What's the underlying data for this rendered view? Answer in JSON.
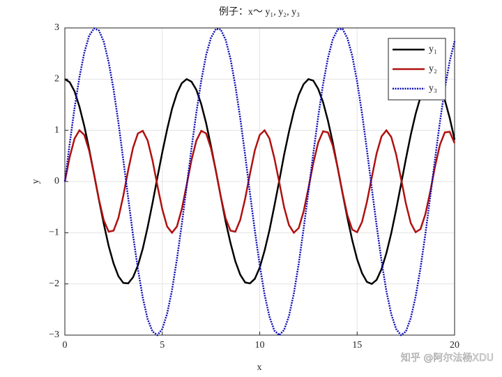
{
  "chart_data": {
    "type": "line",
    "title": "例子：x～ y₁, y₂, y₃",
    "xlabel": "x",
    "ylabel": "y",
    "watermark": "知乎 @阿尔法杨XDU",
    "x": [
      0,
      0.25,
      0.5,
      0.75,
      1,
      1.25,
      1.5,
      1.75,
      2,
      2.25,
      2.5,
      2.75,
      3,
      3.25,
      3.5,
      3.75,
      4,
      4.25,
      4.5,
      4.75,
      5,
      5.25,
      5.5,
      5.75,
      6,
      6.25,
      6.5,
      6.75,
      7,
      7.25,
      7.5,
      7.75,
      8,
      8.25,
      8.5,
      8.75,
      9,
      9.25,
      9.5,
      9.75,
      10,
      10.25,
      10.5,
      10.75,
      11,
      11.25,
      11.5,
      11.75,
      12,
      12.25,
      12.5,
      12.75,
      13,
      13.25,
      13.5,
      13.75,
      14,
      14.25,
      14.5,
      14.75,
      15,
      15.25,
      15.5,
      15.75,
      16,
      16.25,
      16.5,
      16.75,
      17,
      17.25,
      17.5,
      17.75,
      18,
      18.25,
      18.5,
      18.75,
      19,
      19.25,
      19.5,
      19.75,
      20
    ],
    "series": [
      {
        "name": "y₁",
        "color": "#000000",
        "dash": "solid",
        "values": [
          2,
          1.94,
          1.76,
          1.46,
          1.08,
          0.63,
          0.14,
          -0.36,
          -0.83,
          -1.26,
          -1.6,
          -1.85,
          -1.98,
          -1.99,
          -1.87,
          -1.64,
          -1.31,
          -0.89,
          -0.42,
          0.08,
          0.57,
          1.02,
          1.42,
          1.72,
          1.92,
          2,
          1.95,
          1.79,
          1.51,
          1.14,
          0.69,
          0.21,
          -0.29,
          -0.78,
          -1.2,
          -1.56,
          -1.82,
          -1.97,
          -1.99,
          -1.9,
          -1.68,
          -1.35,
          -0.95,
          -0.48,
          0.01,
          0.52,
          0.97,
          1.37,
          1.69,
          1.9,
          2,
          1.97,
          1.81,
          1.55,
          1.19,
          0.76,
          0.27,
          -0.23,
          -0.71,
          -1.15,
          -1.52,
          -1.79,
          -1.96,
          -2,
          -1.92,
          -1.71,
          -1.4,
          -1.01,
          -0.55,
          -0.06,
          0.44,
          0.91,
          1.32,
          1.65,
          1.88,
          1.99,
          1.98,
          1.84,
          1.59,
          1.24,
          0.82
        ]
      },
      {
        "name": "y₂",
        "color": "#b01010",
        "dash": "solid",
        "values": [
          0,
          0.48,
          0.84,
          1,
          0.91,
          0.6,
          0.14,
          -0.35,
          -0.76,
          -0.98,
          -0.96,
          -0.71,
          -0.28,
          0.22,
          0.66,
          0.94,
          0.99,
          0.8,
          0.41,
          -0.08,
          -0.54,
          -0.88,
          -1,
          -0.88,
          -0.54,
          -0.07,
          0.42,
          0.8,
          0.99,
          0.94,
          0.65,
          0.21,
          -0.29,
          -0.72,
          -0.96,
          -0.98,
          -0.75,
          -0.34,
          0.15,
          0.61,
          0.91,
          1,
          0.84,
          0.46,
          -0.01,
          -0.5,
          -0.85,
          -1,
          -0.91,
          -0.59,
          -0.13,
          0.36,
          0.76,
          0.98,
          0.96,
          0.7,
          0.27,
          -0.22,
          -0.66,
          -0.94,
          -0.99,
          -0.79,
          -0.4,
          0.08,
          0.55,
          0.88,
          1,
          0.87,
          0.53,
          0.06,
          -0.43,
          -0.81,
          -0.99,
          -0.93,
          -0.64,
          -0.2,
          0.3,
          0.72,
          0.96,
          0.97,
          0.75
        ]
      },
      {
        "name": "y₃",
        "color": "#0a0ab4",
        "dash": "dotted",
        "values": [
          0,
          0.74,
          1.44,
          2.04,
          2.52,
          2.85,
          2.99,
          2.95,
          2.73,
          2.33,
          1.8,
          1.15,
          0.42,
          -0.32,
          -1.05,
          -1.71,
          -2.27,
          -2.69,
          -2.93,
          -3,
          -2.88,
          -2.58,
          -2.12,
          -1.52,
          -0.84,
          -0.1,
          0.65,
          1.35,
          1.97,
          2.47,
          2.81,
          2.98,
          2.97,
          2.77,
          2.4,
          1.87,
          1.24,
          0.52,
          -0.23,
          -0.96,
          -1.63,
          -2.21,
          -2.64,
          -2.91,
          -3,
          -2.9,
          -2.63,
          -2.19,
          -1.61,
          -0.93,
          -0.2,
          0.55,
          1.26,
          1.9,
          2.41,
          2.78,
          2.97,
          2.98,
          2.8,
          2.45,
          1.95,
          1.33,
          0.62,
          -0.13,
          -0.86,
          -1.55,
          -2.14,
          -2.59,
          -2.88,
          -3,
          -2.93,
          -2.67,
          -2.25,
          -1.69,
          -1.03,
          -0.3,
          0.45,
          1.17,
          1.82,
          2.35,
          2.74
        ]
      }
    ],
    "xlim": [
      0,
      20
    ],
    "xticks": [
      0,
      5,
      10,
      15,
      20
    ],
    "ylim": [
      -3,
      3
    ],
    "yticks": [
      {
        "value": -3,
        "label": "−3"
      },
      {
        "value": -2,
        "label": "−2"
      },
      {
        "value": -1,
        "label": "−1"
      },
      0,
      1,
      2,
      3
    ],
    "grid": true,
    "legend": "upper right"
  }
}
